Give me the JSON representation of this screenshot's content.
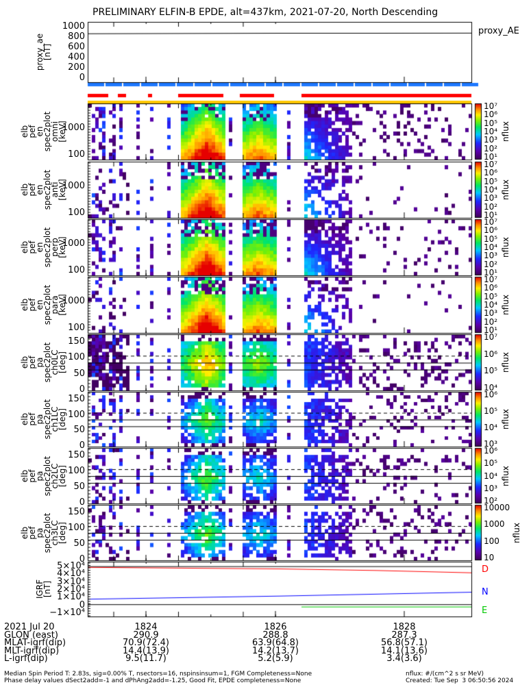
{
  "title": "PRELIMINARY ELFIN-B EPDE, alt=437km, 2021-07-20, North Descending",
  "colors": {
    "red": "#ff0000",
    "blue": "#0000ff",
    "green": "#00c800",
    "status_blue": "#1e78ff",
    "status_red": "#ff0000",
    "status_yellow": "#ffc800"
  },
  "chart_data": [
    {
      "type": "line",
      "name": "proxy_ae",
      "ylabel": "proxy_ae\n[nT]",
      "legend": "proxy_AE",
      "ylim": [
        0,
        1000
      ],
      "yticks": [
        "1000",
        "800",
        "600",
        "400",
        "200",
        "0"
      ],
      "values": [
        850,
        855,
        860,
        860,
        862
      ]
    },
    {
      "type": "heatmap",
      "ylabel": "elb\npef\nen\nspec2plot\nomni\n[keV]",
      "yticks": [
        "1000",
        "100"
      ],
      "zlabel": "nflux",
      "zticks": [
        "10⁷",
        "10⁶",
        "10⁵",
        "10⁴",
        "10³",
        "10²",
        "10¹"
      ]
    },
    {
      "type": "heatmap",
      "ylabel": "elb\npef\nen\nspec2plot\nanti\n[keV]",
      "yticks": [
        "1000",
        "100"
      ],
      "zlabel": "nflux",
      "zticks": [
        "10⁷",
        "10⁶",
        "10⁵",
        "10⁴",
        "10³",
        "10²",
        "10¹"
      ]
    },
    {
      "type": "heatmap",
      "ylabel": "elb\npef\nen\nspec2plot\nperp\n[keV]",
      "yticks": [
        "1000",
        "100"
      ],
      "zlabel": "nflux",
      "zticks": [
        "10⁷",
        "10⁶",
        "10⁵",
        "10⁴",
        "10³",
        "10²",
        "10¹"
      ]
    },
    {
      "type": "heatmap",
      "ylabel": "elb\npef\nen\nspec2plot\npara\n[keV]",
      "yticks": [
        "1000",
        "100"
      ],
      "zlabel": "nflux",
      "zticks": [
        "10⁷",
        "10⁶",
        "10⁵",
        "10⁴",
        "10³",
        "10²",
        "10¹"
      ]
    },
    {
      "type": "heatmap",
      "ylabel": "elb\npef\npa\nspec2plot\nch0LC\n[deg]",
      "yticks": [
        "150",
        "100",
        "50",
        "0"
      ],
      "zlabel": "nflux",
      "zticks": [
        "10⁷",
        "10⁶",
        "10⁵",
        "10⁴"
      ]
    },
    {
      "type": "heatmap",
      "ylabel": "elb\npef\npa\nspec2plot\nch1LC\n[deg]",
      "yticks": [
        "150",
        "100",
        "50",
        "0"
      ],
      "zlabel": "nflux",
      "zticks": [
        "10⁶",
        "10⁵",
        "10⁴",
        "10³"
      ]
    },
    {
      "type": "heatmap",
      "ylabel": "elb\npef\npa\nspec2plot\nch2LC\n[deg]",
      "yticks": [
        "150",
        "100",
        "50",
        "0"
      ],
      "zlabel": "nflux",
      "zticks": [
        "10⁶",
        "10⁵",
        "10⁴",
        "10³",
        "10²"
      ]
    },
    {
      "type": "heatmap",
      "ylabel": "elb\npef\npa\nspec2plot\nch3LC\n[deg]",
      "yticks": [
        "150",
        "100",
        "50",
        "0"
      ],
      "zlabel": "nflux",
      "zticks": [
        "10000",
        "1000",
        "100",
        "10"
      ]
    },
    {
      "type": "line",
      "name": "IGRF",
      "ylabel": "IGRF\n[nT]",
      "ylim": [
        -15000,
        55000
      ],
      "yticks": [
        "5×10⁴",
        "4×10⁴",
        "3×10⁴",
        "2×10⁴",
        "1×10⁴",
        "0",
        "−1×10⁴"
      ],
      "series": [
        {
          "name": "D",
          "color": "#ff0000",
          "values": [
            48000,
            47000,
            46000,
            44000,
            41000
          ]
        },
        {
          "name": "N",
          "color": "#0000ff",
          "values": [
            7000,
            9000,
            11000,
            13500,
            16000
          ]
        },
        {
          "name": "E",
          "color": "#00c800",
          "values": [
            -3000,
            -3000,
            -3000,
            -3000,
            -3000
          ]
        }
      ]
    }
  ],
  "xaxis": {
    "rows": [
      {
        "label": "2021 Jul 20",
        "ticks": [
          "1824",
          "1826",
          "1828"
        ]
      },
      {
        "label": "GLON (east)",
        "ticks": [
          "290.9",
          "288.8",
          "287.3"
        ]
      },
      {
        "label": "MLAT-igrf(dip)",
        "ticks": [
          "70.9(72.4)",
          "63.9(64.8)",
          "56.8(57.1)"
        ]
      },
      {
        "label": "MLT-igrf(dip)",
        "ticks": [
          "14.4(13.9)",
          "14.2(13.7)",
          "14.1(13.6)"
        ]
      },
      {
        "label": "L-igrf(dip)",
        "ticks": [
          "9.5(11.7)",
          "5.2(5.9)",
          "3.4(3.6)"
        ]
      }
    ]
  },
  "footer": {
    "line1": "Median Spin Period T: 2.83s, sig=0.00% T, nsectors=16, nspinsinsum=1, FGM Completeness=None",
    "line2": "Phase delay values dSect2add=-1 and dPhAng2add=-1.25, Good Fit, EPDE completeness=None",
    "units": "nflux: #/(cm^2 s sr MeV)",
    "created": "Created: Tue Sep  3 06:50:56 2024"
  }
}
